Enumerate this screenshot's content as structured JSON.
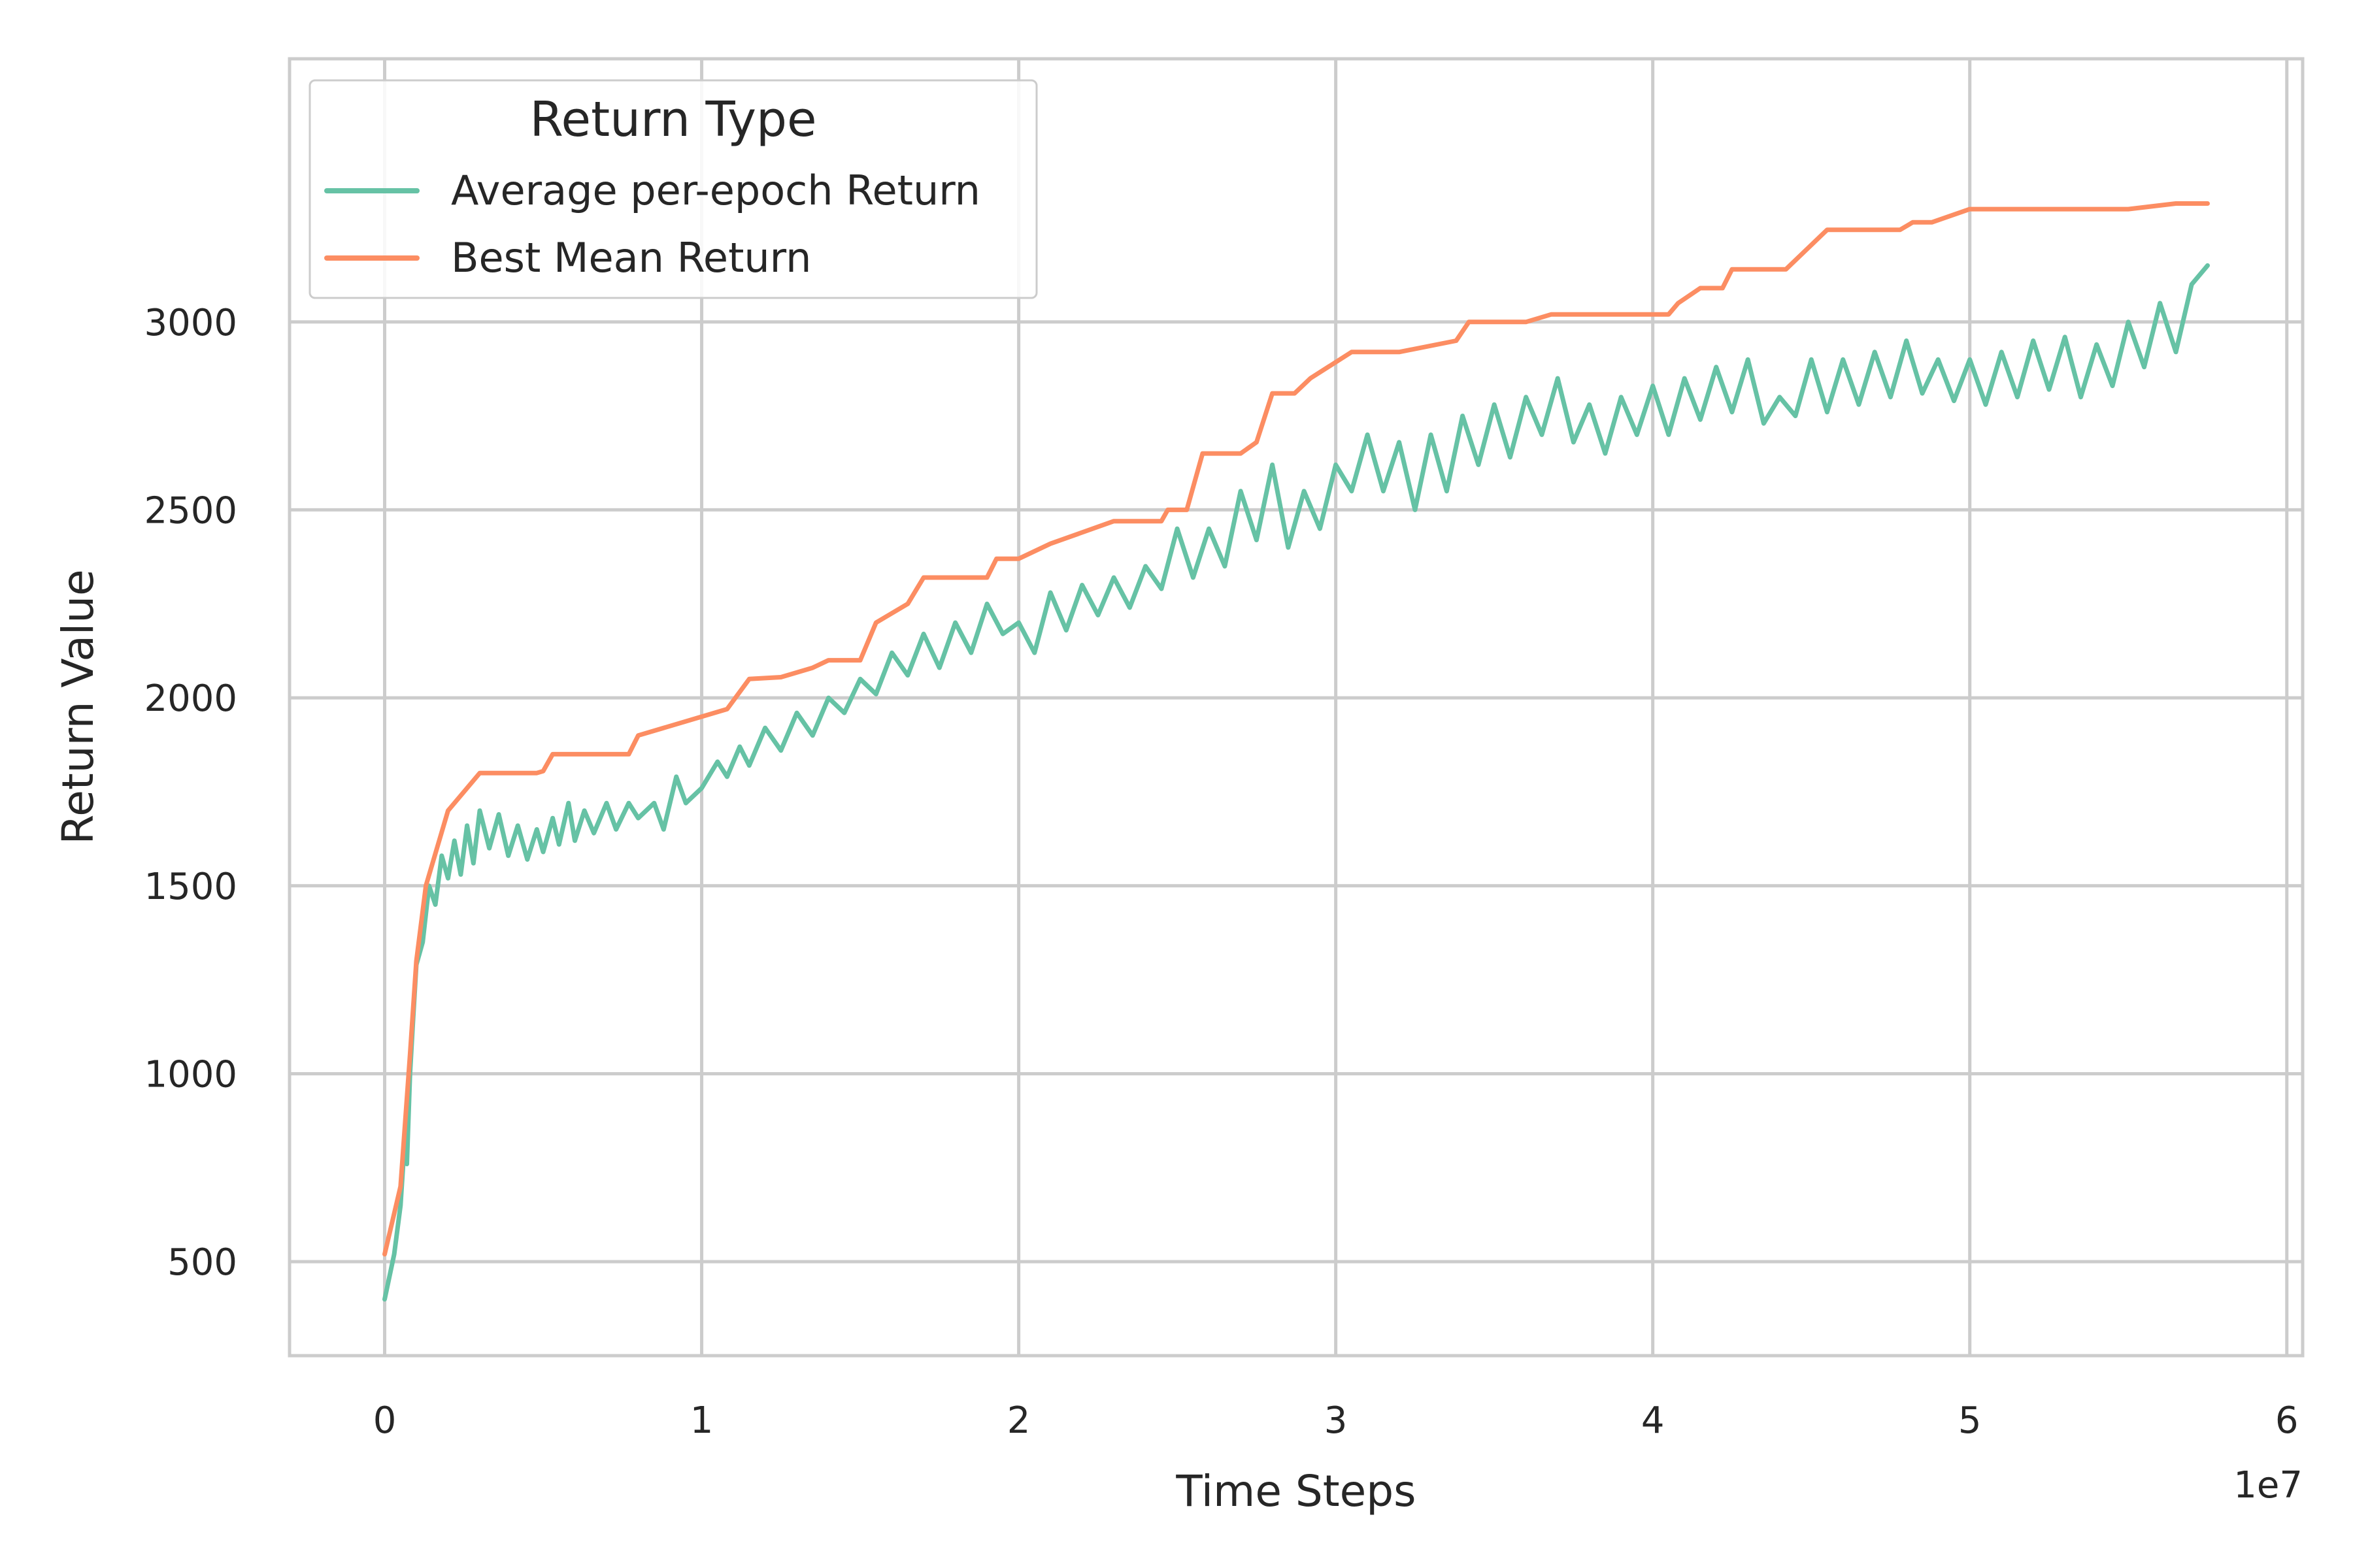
{
  "colors": {
    "average": "#66c2a5",
    "best": "#fc8d62",
    "grid": "#cccccc",
    "text": "#262626"
  },
  "chart_data": {
    "type": "line",
    "title": "",
    "xlabel": "Time Steps",
    "ylabel": "Return Value",
    "x_offset_label": "1e7",
    "xlim": [
      -0.3,
      6.05
    ],
    "ylim": [
      250,
      3700
    ],
    "x_ticks": [
      0,
      1,
      2,
      3,
      4,
      5,
      6
    ],
    "x_tick_labels": [
      "0",
      "1",
      "2",
      "3",
      "4",
      "5",
      "6"
    ],
    "y_ticks": [
      500,
      1000,
      1500,
      2000,
      2500,
      3000
    ],
    "y_tick_labels": [
      "500",
      "1000",
      "1500",
      "2000",
      "2500",
      "3000"
    ],
    "x_unit_scale": "1e7",
    "grid": true,
    "legend": {
      "title": "Return Type",
      "position": "top-left"
    },
    "series": [
      {
        "name": "Average per-epoch Return",
        "color": "#66c2a5",
        "points": [
          [
            0.0,
            400
          ],
          [
            0.03,
            520
          ],
          [
            0.05,
            650
          ],
          [
            0.06,
            780
          ],
          [
            0.07,
            760
          ],
          [
            0.08,
            1000
          ],
          [
            0.09,
            1150
          ],
          [
            0.1,
            1290
          ],
          [
            0.12,
            1350
          ],
          [
            0.14,
            1500
          ],
          [
            0.16,
            1450
          ],
          [
            0.18,
            1580
          ],
          [
            0.2,
            1520
          ],
          [
            0.22,
            1620
          ],
          [
            0.24,
            1530
          ],
          [
            0.26,
            1660
          ],
          [
            0.28,
            1560
          ],
          [
            0.3,
            1700
          ],
          [
            0.33,
            1600
          ],
          [
            0.36,
            1690
          ],
          [
            0.39,
            1580
          ],
          [
            0.42,
            1660
          ],
          [
            0.45,
            1570
          ],
          [
            0.48,
            1650
          ],
          [
            0.5,
            1590
          ],
          [
            0.53,
            1680
          ],
          [
            0.55,
            1610
          ],
          [
            0.58,
            1720
          ],
          [
            0.6,
            1620
          ],
          [
            0.63,
            1700
          ],
          [
            0.66,
            1640
          ],
          [
            0.7,
            1720
          ],
          [
            0.73,
            1650
          ],
          [
            0.77,
            1720
          ],
          [
            0.8,
            1680
          ],
          [
            0.85,
            1720
          ],
          [
            0.88,
            1650
          ],
          [
            0.92,
            1790
          ],
          [
            0.95,
            1720
          ],
          [
            1.0,
            1760
          ],
          [
            1.05,
            1830
          ],
          [
            1.08,
            1790
          ],
          [
            1.12,
            1870
          ],
          [
            1.15,
            1820
          ],
          [
            1.2,
            1920
          ],
          [
            1.25,
            1860
          ],
          [
            1.3,
            1960
          ],
          [
            1.35,
            1900
          ],
          [
            1.4,
            2000
          ],
          [
            1.45,
            1960
          ],
          [
            1.5,
            2050
          ],
          [
            1.55,
            2010
          ],
          [
            1.6,
            2120
          ],
          [
            1.65,
            2060
          ],
          [
            1.7,
            2170
          ],
          [
            1.75,
            2080
          ],
          [
            1.8,
            2200
          ],
          [
            1.85,
            2120
          ],
          [
            1.9,
            2250
          ],
          [
            1.95,
            2170
          ],
          [
            2.0,
            2200
          ],
          [
            2.05,
            2120
          ],
          [
            2.1,
            2280
          ],
          [
            2.15,
            2180
          ],
          [
            2.2,
            2300
          ],
          [
            2.25,
            2220
          ],
          [
            2.3,
            2320
          ],
          [
            2.35,
            2240
          ],
          [
            2.4,
            2350
          ],
          [
            2.45,
            2290
          ],
          [
            2.5,
            2450
          ],
          [
            2.55,
            2320
          ],
          [
            2.6,
            2450
          ],
          [
            2.65,
            2350
          ],
          [
            2.7,
            2550
          ],
          [
            2.75,
            2420
          ],
          [
            2.8,
            2620
          ],
          [
            2.85,
            2400
          ],
          [
            2.9,
            2550
          ],
          [
            2.95,
            2450
          ],
          [
            3.0,
            2620
          ],
          [
            3.05,
            2550
          ],
          [
            3.1,
            2700
          ],
          [
            3.15,
            2550
          ],
          [
            3.2,
            2680
          ],
          [
            3.25,
            2500
          ],
          [
            3.3,
            2700
          ],
          [
            3.35,
            2550
          ],
          [
            3.4,
            2750
          ],
          [
            3.45,
            2620
          ],
          [
            3.5,
            2780
          ],
          [
            3.55,
            2640
          ],
          [
            3.6,
            2800
          ],
          [
            3.65,
            2700
          ],
          [
            3.7,
            2850
          ],
          [
            3.75,
            2680
          ],
          [
            3.8,
            2780
          ],
          [
            3.85,
            2650
          ],
          [
            3.9,
            2800
          ],
          [
            3.95,
            2700
          ],
          [
            4.0,
            2830
          ],
          [
            4.05,
            2700
          ],
          [
            4.1,
            2850
          ],
          [
            4.15,
            2740
          ],
          [
            4.2,
            2880
          ],
          [
            4.25,
            2760
          ],
          [
            4.3,
            2900
          ],
          [
            4.35,
            2730
          ],
          [
            4.4,
            2800
          ],
          [
            4.45,
            2750
          ],
          [
            4.5,
            2900
          ],
          [
            4.55,
            2760
          ],
          [
            4.6,
            2900
          ],
          [
            4.65,
            2780
          ],
          [
            4.7,
            2920
          ],
          [
            4.75,
            2800
          ],
          [
            4.8,
            2950
          ],
          [
            4.85,
            2810
          ],
          [
            4.9,
            2900
          ],
          [
            4.95,
            2790
          ],
          [
            5.0,
            2900
          ],
          [
            5.05,
            2780
          ],
          [
            5.1,
            2920
          ],
          [
            5.15,
            2800
          ],
          [
            5.2,
            2950
          ],
          [
            5.25,
            2820
          ],
          [
            5.3,
            2960
          ],
          [
            5.35,
            2800
          ],
          [
            5.4,
            2940
          ],
          [
            5.45,
            2830
          ],
          [
            5.5,
            3000
          ],
          [
            5.55,
            2880
          ],
          [
            5.6,
            3050
          ],
          [
            5.65,
            2920
          ],
          [
            5.7,
            3100
          ],
          [
            5.75,
            3150
          ]
        ]
      },
      {
        "name": "Best Mean Return",
        "color": "#fc8d62",
        "points": [
          [
            0.0,
            520
          ],
          [
            0.05,
            700
          ],
          [
            0.08,
            1050
          ],
          [
            0.1,
            1300
          ],
          [
            0.13,
            1500
          ],
          [
            0.2,
            1700
          ],
          [
            0.3,
            1800
          ],
          [
            0.48,
            1800
          ],
          [
            0.5,
            1805
          ],
          [
            0.53,
            1850
          ],
          [
            0.77,
            1850
          ],
          [
            0.8,
            1900
          ],
          [
            1.08,
            1970
          ],
          [
            1.15,
            2050
          ],
          [
            1.25,
            2055
          ],
          [
            1.35,
            2080
          ],
          [
            1.4,
            2100
          ],
          [
            1.5,
            2100
          ],
          [
            1.55,
            2200
          ],
          [
            1.65,
            2250
          ],
          [
            1.7,
            2320
          ],
          [
            1.9,
            2320
          ],
          [
            1.93,
            2370
          ],
          [
            2.0,
            2370
          ],
          [
            2.1,
            2410
          ],
          [
            2.3,
            2470
          ],
          [
            2.45,
            2470
          ],
          [
            2.47,
            2500
          ],
          [
            2.53,
            2500
          ],
          [
            2.58,
            2650
          ],
          [
            2.7,
            2650
          ],
          [
            2.75,
            2680
          ],
          [
            2.8,
            2810
          ],
          [
            2.87,
            2810
          ],
          [
            2.92,
            2850
          ],
          [
            3.05,
            2920
          ],
          [
            3.2,
            2920
          ],
          [
            3.38,
            2950
          ],
          [
            3.42,
            3000
          ],
          [
            3.6,
            3000
          ],
          [
            3.68,
            3020
          ],
          [
            4.05,
            3020
          ],
          [
            4.08,
            3050
          ],
          [
            4.15,
            3090
          ],
          [
            4.22,
            3090
          ],
          [
            4.25,
            3140
          ],
          [
            4.42,
            3140
          ],
          [
            4.55,
            3245
          ],
          [
            4.78,
            3245
          ],
          [
            4.82,
            3265
          ],
          [
            4.88,
            3265
          ],
          [
            5.0,
            3300
          ],
          [
            5.5,
            3300
          ],
          [
            5.65,
            3315
          ],
          [
            5.75,
            3315
          ]
        ]
      }
    ]
  }
}
